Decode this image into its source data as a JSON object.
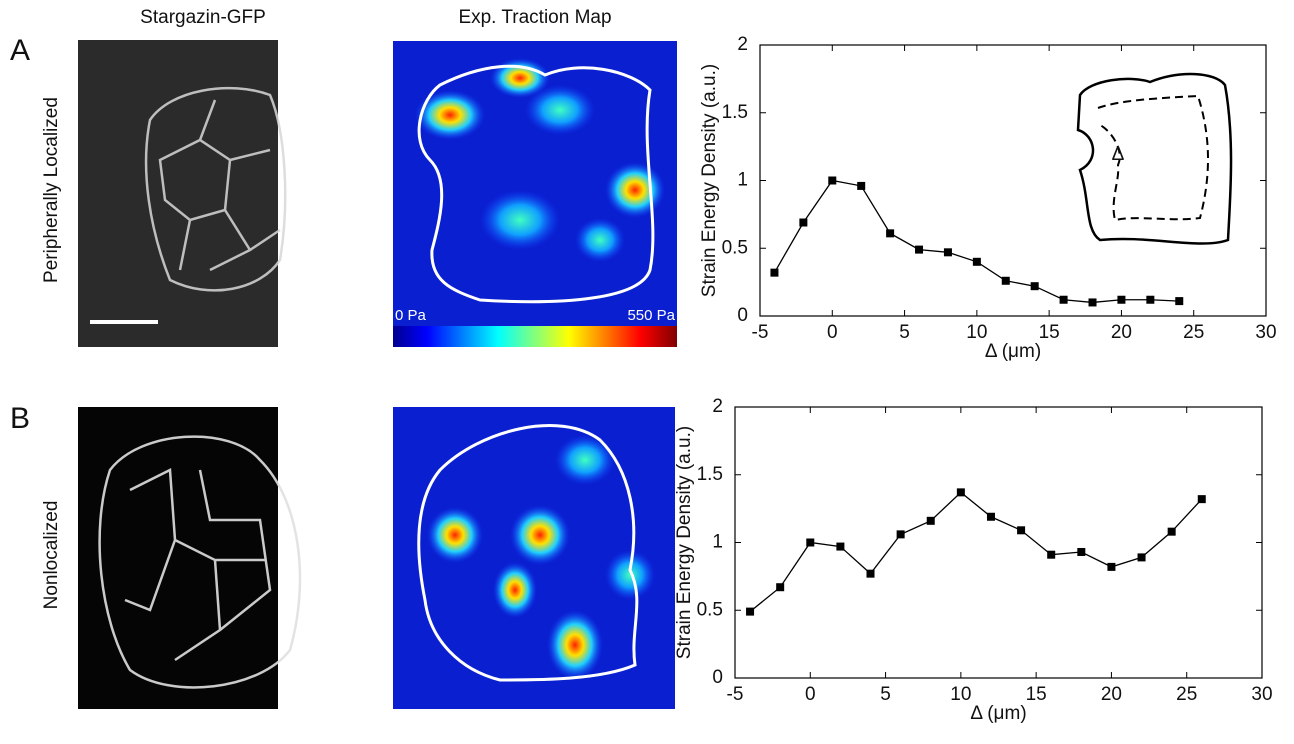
{
  "panel_labels": [
    "A",
    "B"
  ],
  "column_titles": [
    "Stargazin-GFP",
    "Exp. Traction Map"
  ],
  "row_labels": [
    "Peripherally Localized",
    "Nonlocalized"
  ],
  "colorbar": {
    "min_label": "0 Pa",
    "max_label": "550 Pa"
  },
  "chart_data": [
    {
      "type": "line",
      "xlabel": "Δ (μm)",
      "ylabel": "Strain Energy Density (a.u.)",
      "annotation": "Δ",
      "x": [
        -4,
        -2,
        0,
        2,
        4,
        6,
        8,
        10,
        12,
        14,
        16,
        18,
        20,
        22,
        24
      ],
      "values": [
        0.32,
        0.69,
        1.0,
        0.96,
        0.61,
        0.49,
        0.47,
        0.4,
        0.26,
        0.22,
        0.12,
        0.1,
        0.12,
        0.12,
        0.11
      ],
      "color": "#000000",
      "xlim": [
        -5,
        30
      ],
      "ylim": [
        0,
        2
      ],
      "xticks": [
        -5,
        0,
        5,
        10,
        15,
        20,
        25,
        30
      ],
      "yticks": [
        0,
        0.5,
        1,
        1.5,
        2
      ]
    },
    {
      "type": "line",
      "xlabel": "Δ (μm)",
      "ylabel": "Strain Energy Density (a.u.)",
      "x": [
        -4,
        -2,
        0,
        2,
        4,
        6,
        8,
        10,
        12,
        14,
        16,
        18,
        20,
        22,
        24,
        26
      ],
      "values": [
        0.49,
        0.67,
        1.0,
        0.97,
        0.77,
        1.06,
        1.16,
        1.37,
        1.19,
        1.09,
        0.91,
        0.93,
        0.82,
        0.89,
        1.08,
        1.32
      ],
      "color": "#000000",
      "xlim": [
        -5,
        30
      ],
      "ylim": [
        0,
        2
      ],
      "xticks": [
        -5,
        0,
        5,
        10,
        15,
        20,
        25,
        30
      ],
      "yticks": [
        0,
        0.5,
        1,
        1.5,
        2
      ]
    }
  ]
}
